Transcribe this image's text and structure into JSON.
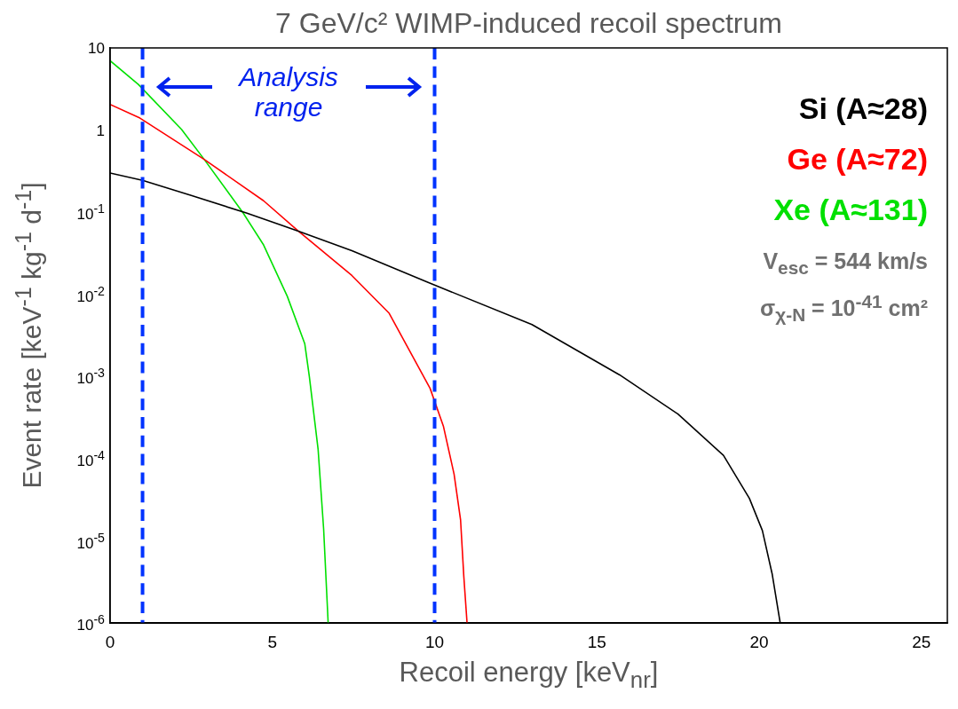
{
  "chart_data": {
    "type": "line",
    "title": "7 GeV/c² WIMP-induced recoil spectrum",
    "xlabel": "Recoil energy [keV$_{nr}$]",
    "ylabel": "Event rate  [keV$^{-1}$ kg$^{-1}$ d$^{-1}$]",
    "series": [
      {
        "name": "Si (A≈28)",
        "color": "#000000",
        "x": [
          0,
          1,
          2.5,
          4.2,
          5.8,
          7.45,
          9.8,
          13.0,
          15.7,
          17.5,
          18.9,
          19.7,
          20.1,
          20.4,
          20.65
        ],
        "values": [
          0.3,
          0.245,
          0.16,
          0.098,
          0.059,
          0.034,
          0.014,
          0.0043,
          0.00105,
          0.00035,
          0.00011,
          3.3e-05,
          1.34e-05,
          4e-06,
          1e-06
        ]
      },
      {
        "name": "Ge (A≈72)",
        "color": "#ff0000",
        "x": [
          0,
          0.92,
          2.9,
          4.73,
          5.8,
          7.45,
          8.6,
          9.86,
          10.27,
          10.6,
          10.8,
          10.9,
          11.0
        ],
        "values": [
          2.05,
          1.4,
          0.44,
          0.138,
          0.059,
          0.017,
          0.0059,
          0.00072,
          0.00025,
          6.5e-05,
          1.8e-05,
          3.7e-06,
          1e-06
        ]
      },
      {
        "name": "Xe (A≈131)",
        "color": "#00e000",
        "x": [
          0,
          0.87,
          2.2,
          2.9,
          4.1,
          4.73,
          5.46,
          6.0,
          6.14,
          6.41,
          6.58,
          6.72
        ],
        "values": [
          7.0,
          3.6,
          1.02,
          0.44,
          0.098,
          0.04,
          0.0095,
          0.0025,
          0.001,
          0.00013,
          1.4e-05,
          1e-06
        ]
      }
    ],
    "xlim": [
      0,
      25.8
    ],
    "xticks": [
      0,
      5,
      10,
      15,
      20,
      25
    ],
    "ylim": [
      1e-06,
      10
    ],
    "yticks": [
      {
        "value": 1e-06,
        "label": "10$^{-6}$"
      },
      {
        "value": 1e-05,
        "label": "10$^{-5}$"
      },
      {
        "value": 0.0001,
        "label": "10$^{-4}$"
      },
      {
        "value": 0.001,
        "label": "10$^{-3}$"
      },
      {
        "value": 0.01,
        "label": "10$^{-2}$"
      },
      {
        "value": 0.1,
        "label": "10$^{-1}$"
      },
      1,
      10
    ],
    "log": "y",
    "legend": "top right",
    "line_style": "solid",
    "ref_lines": [
      {
        "axis": "x",
        "value": 1,
        "color": "#0033ff",
        "line_style": "dashed"
      },
      {
        "axis": "x",
        "value": 10,
        "color": "#0033ff",
        "line_style": "dashed"
      }
    ],
    "annotations": [
      "Analysis range",
      "V$_{esc}$ = 544 km/s",
      "σ$_{χ-N}$ = 10$^{-41}$ cm²"
    ]
  }
}
